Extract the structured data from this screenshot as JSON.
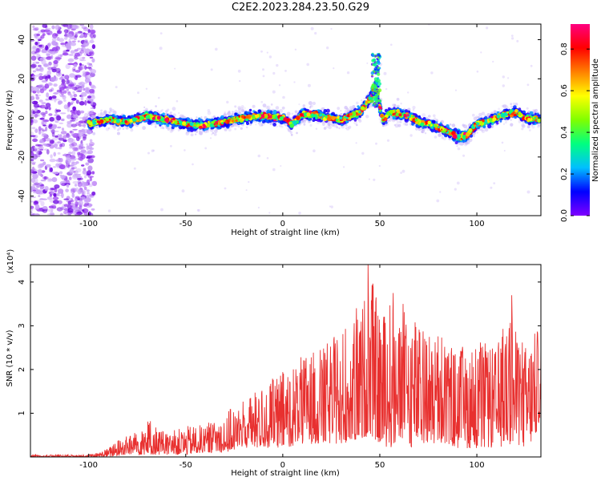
{
  "title": "C2E2.2023.284.23.50.G29",
  "chart_data": [
    {
      "type": "heatmap",
      "xlabel": "Height of straight line (km)",
      "ylabel": "Frequency (Hz)",
      "xlim": [
        -130,
        133
      ],
      "ylim": [
        -50,
        48
      ],
      "xticks": [
        -100,
        -50,
        0,
        50,
        100
      ],
      "yticks": [
        -40,
        -20,
        0,
        20,
        40
      ],
      "colorbar": {
        "label": "Normalized spectral amplitude",
        "range": [
          0.0,
          0.92
        ],
        "ticks": [
          0.0,
          0.2,
          0.4,
          0.6,
          0.8
        ],
        "colormap": [
          "#7f00ff",
          "#0000ff",
          "#00bfff",
          "#00ff80",
          "#80ff00",
          "#ffff00",
          "#ff8000",
          "#ff0000",
          "#ff0080"
        ]
      },
      "ridge": {
        "x": [
          -100,
          -90,
          -80,
          -70,
          -60,
          -50,
          -40,
          -30,
          -20,
          -10,
          0,
          5,
          10,
          20,
          30,
          40,
          45,
          48,
          50,
          52,
          55,
          60,
          65,
          70,
          75,
          80,
          85,
          90,
          95,
          100,
          105,
          110,
          115,
          120,
          125,
          133
        ],
        "freq": [
          -3,
          -1,
          -2,
          1,
          -1,
          -3,
          -4,
          -2,
          0,
          1,
          0,
          -3,
          2,
          1,
          -1,
          3,
          10,
          17,
          5,
          -1,
          3,
          2,
          1,
          -2,
          -3,
          -5,
          -7,
          -10,
          -9,
          -3,
          -2,
          0,
          2,
          3,
          0,
          -1
        ]
      },
      "noise_region_x": [
        -130,
        -100
      ]
    },
    {
      "type": "line",
      "xlabel": "Height of straight line (km)",
      "ylabel": "SNR (10 * v/v)",
      "y_multiplier": "(x10⁴)",
      "xlim": [
        -130,
        133
      ],
      "ylim": [
        0,
        4.4
      ],
      "xticks": [
        -100,
        -50,
        0,
        50,
        100
      ],
      "yticks": [
        1,
        2,
        3,
        4
      ],
      "series_color": "#e8302f",
      "envelope": {
        "x": [
          -130,
          -100,
          -95,
          -90,
          -85,
          -80,
          -75,
          -70,
          -60,
          -50,
          -40,
          -30,
          -20,
          -10,
          0,
          10,
          20,
          30,
          40,
          45,
          50,
          55,
          60,
          65,
          70,
          80,
          90,
          100,
          110,
          118,
          120,
          125,
          130,
          133
        ],
        "upper": [
          0.05,
          0.05,
          0.1,
          0.2,
          0.4,
          0.5,
          0.6,
          0.9,
          0.55,
          0.7,
          0.75,
          1.0,
          1.3,
          1.6,
          2.0,
          2.3,
          2.5,
          2.9,
          3.3,
          4.4,
          3.2,
          3.7,
          3.1,
          3.6,
          3.0,
          2.8,
          2.5,
          2.7,
          2.5,
          3.7,
          2.9,
          2.6,
          3.0,
          2.8
        ],
        "lower": [
          0.0,
          0.0,
          0.0,
          0.0,
          0.02,
          0.05,
          0.05,
          0.05,
          0.05,
          0.05,
          0.1,
          0.1,
          0.2,
          0.2,
          0.2,
          0.3,
          0.3,
          0.3,
          0.4,
          0.5,
          0.3,
          0.2,
          0.3,
          0.2,
          0.3,
          0.3,
          0.2,
          0.2,
          0.2,
          0.3,
          0.3,
          0.2,
          0.4,
          1.0
        ]
      },
      "peaks": [
        {
          "x": 44,
          "y": 4.4
        },
        {
          "x": 57,
          "y": 3.75
        },
        {
          "x": 118,
          "y": 3.7
        },
        {
          "x": 62,
          "y": 3.5
        },
        {
          "x": 38,
          "y": 3.4
        }
      ]
    }
  ]
}
